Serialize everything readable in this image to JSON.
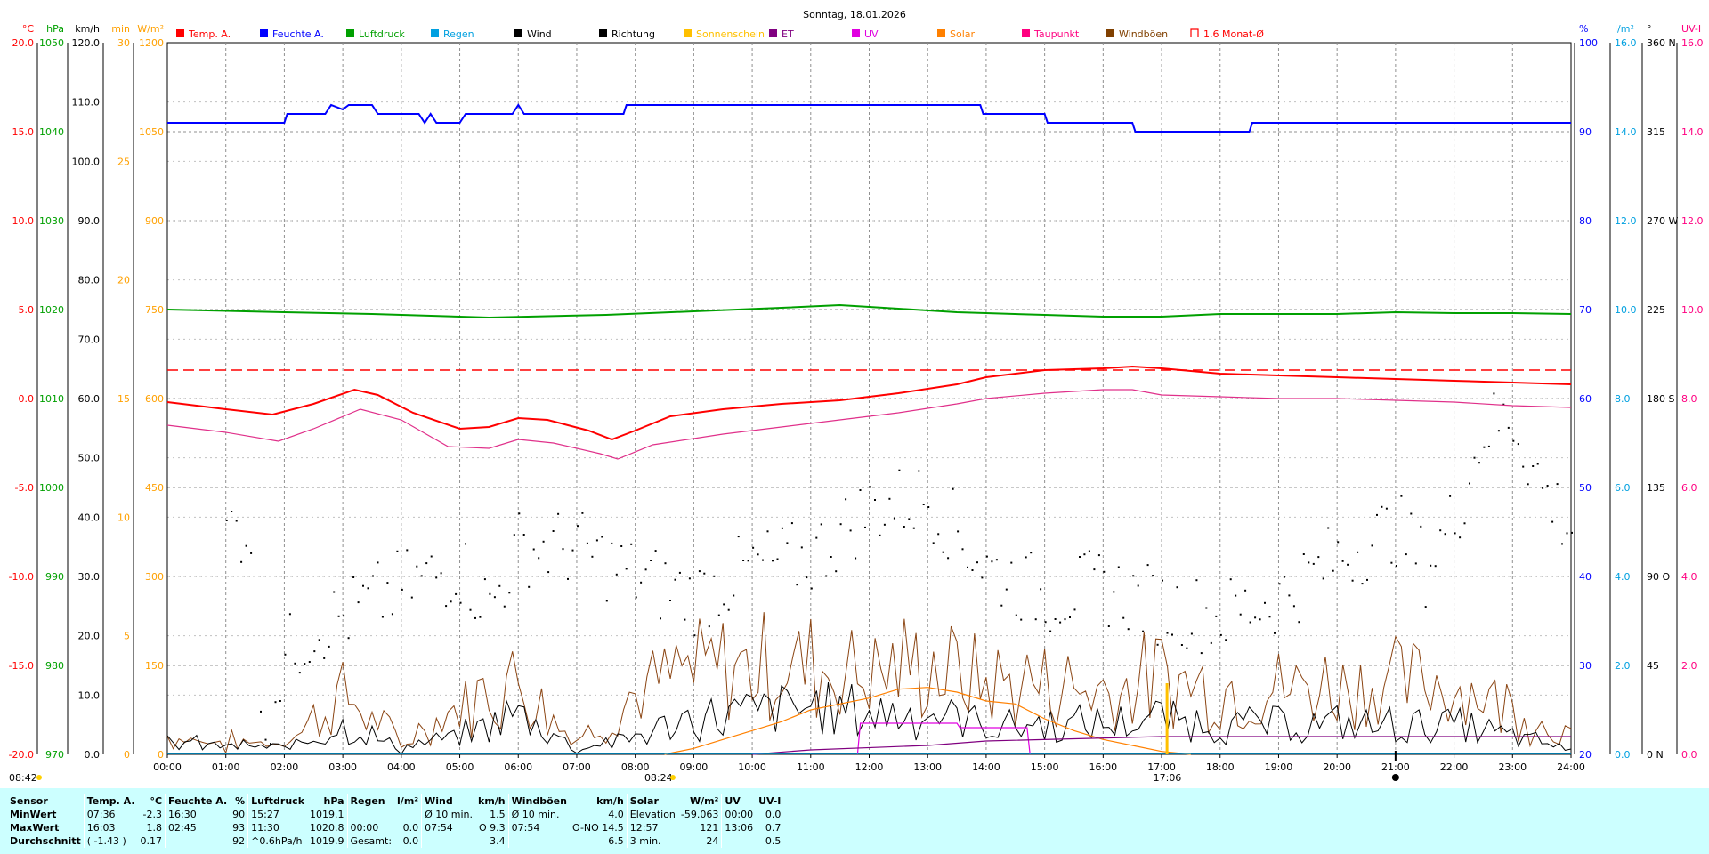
{
  "title": "Sonntag, 18.01.2026",
  "sunrise": "08:42",
  "marker_0824": "08:24",
  "marker_1706": "17:06",
  "legend": [
    {
      "label": "Temp. A.",
      "color": "#ff0000"
    },
    {
      "label": "Feuchte A.",
      "color": "#0000ff"
    },
    {
      "label": "Luftdruck",
      "color": "#00a000"
    },
    {
      "label": "Regen",
      "color": "#00a0e0"
    },
    {
      "label": "Wind",
      "color": "#000000"
    },
    {
      "label": "Richtung",
      "color": "#000000"
    },
    {
      "label": "Sonnenschein",
      "color": "#ffc000"
    },
    {
      "label": "ET",
      "color": "#800080"
    },
    {
      "label": "UV",
      "color": "#e000e0"
    },
    {
      "label": "Solar",
      "color": "#ff8000"
    },
    {
      "label": "Taupunkt",
      "color": "#ff0080"
    },
    {
      "label": "Windböen",
      "color": "#804000"
    },
    {
      "label": "1.6 Monat-Ø",
      "color": "#ff0000"
    }
  ],
  "axes": {
    "temp": {
      "unit": "°C",
      "color": "#ff0000",
      "ticks": [
        "20.0",
        "15.0",
        "10.0",
        "5.0",
        "0.0",
        "-5.0",
        "-10.0",
        "-15.0",
        "-20.0"
      ]
    },
    "pressure": {
      "unit": "hPa",
      "color": "#00a000",
      "ticks": [
        "1050",
        "1040",
        "1030",
        "1020",
        "1010",
        "1000",
        "990",
        "980",
        "970"
      ]
    },
    "wind": {
      "unit": "km/h",
      "color": "#000000",
      "ticks": [
        "120.0",
        "110.0",
        "100.0",
        "90.0",
        "80.0",
        "70.0",
        "60.0",
        "50.0",
        "40.0",
        "30.0",
        "20.0",
        "10.0",
        "0.0"
      ]
    },
    "minutes": {
      "unit": "min",
      "color": "#ffa000",
      "ticks": [
        "30",
        "25",
        "20",
        "15",
        "10",
        "5",
        "0"
      ]
    },
    "solar": {
      "unit": "W/m²",
      "color": "#ffa000",
      "ticks": [
        "1200",
        "1050",
        "900",
        "750",
        "600",
        "450",
        "300",
        "150",
        "0"
      ]
    },
    "humidity": {
      "unit": "%",
      "color": "#0000ff",
      "ticks": [
        "100",
        "90",
        "80",
        "70",
        "60",
        "50",
        "40",
        "30",
        "20"
      ]
    },
    "rain": {
      "unit": "l/m²",
      "color": "#00a0e0",
      "ticks": [
        "16.0",
        "14.0",
        "12.0",
        "10.0",
        "8.0",
        "6.0",
        "4.0",
        "2.0",
        "0.0"
      ]
    },
    "direction": {
      "unit": "°",
      "color": "#000000",
      "ticks": [
        "360 N",
        "315",
        "270 W",
        "225",
        "180 S",
        "135",
        "90 O",
        "45",
        "0 N"
      ]
    },
    "uvi": {
      "unit": "UV-I",
      "color": "#ff0080",
      "ticks": [
        "16.0",
        "14.0",
        "12.0",
        "10.0",
        "8.0",
        "6.0",
        "4.0",
        "2.0",
        "0.0"
      ]
    }
  },
  "chart_data": {
    "type": "line",
    "title": "Sonntag, 18.01.2026",
    "x_ticks": [
      "00:00",
      "01:00",
      "02:00",
      "03:00",
      "04:00",
      "05:00",
      "06:00",
      "07:00",
      "08:00",
      "09:00",
      "10:00",
      "11:00",
      "12:00",
      "13:00",
      "14:00",
      "15:00",
      "16:00",
      "17:00",
      "18:00",
      "19:00",
      "20:00",
      "21:00",
      "22:00",
      "23:00",
      "24:00"
    ],
    "xlim": [
      0,
      24
    ],
    "monthly_avg_temp": 1.6,
    "series": [
      {
        "name": "Temp. A.",
        "axis": "temp",
        "color": "#ff0000",
        "points": [
          [
            0,
            -0.2
          ],
          [
            1,
            -0.6
          ],
          [
            1.8,
            -0.9
          ],
          [
            2.5,
            -0.3
          ],
          [
            3.2,
            0.5
          ],
          [
            3.6,
            0.2
          ],
          [
            4.2,
            -0.8
          ],
          [
            5,
            -1.7
          ],
          [
            5.5,
            -1.6
          ],
          [
            6,
            -1.1
          ],
          [
            6.5,
            -1.2
          ],
          [
            7.2,
            -1.8
          ],
          [
            7.6,
            -2.3
          ],
          [
            8,
            -1.8
          ],
          [
            8.6,
            -1.0
          ],
          [
            9.5,
            -0.6
          ],
          [
            10.5,
            -0.3
          ],
          [
            11.5,
            -0.1
          ],
          [
            12.5,
            0.3
          ],
          [
            13.5,
            0.8
          ],
          [
            14,
            1.2
          ],
          [
            15,
            1.6
          ],
          [
            16,
            1.7
          ],
          [
            16.5,
            1.8
          ],
          [
            17,
            1.7
          ],
          [
            18,
            1.4
          ],
          [
            19,
            1.3
          ],
          [
            20,
            1.2
          ],
          [
            21,
            1.1
          ],
          [
            22,
            1.0
          ],
          [
            23,
            0.9
          ],
          [
            24,
            0.8
          ]
        ]
      },
      {
        "name": "Feuchte A.",
        "axis": "humidity",
        "color": "#0000ff",
        "points": [
          [
            0,
            91
          ],
          [
            2,
            91
          ],
          [
            2.05,
            92
          ],
          [
            2.7,
            92
          ],
          [
            2.8,
            93
          ],
          [
            3.0,
            92.5
          ],
          [
            3.1,
            93
          ],
          [
            3.5,
            93
          ],
          [
            3.6,
            92
          ],
          [
            4.3,
            92
          ],
          [
            4.4,
            91
          ],
          [
            4.5,
            92
          ],
          [
            4.6,
            91
          ],
          [
            5.0,
            91
          ],
          [
            5.1,
            92
          ],
          [
            5.9,
            92
          ],
          [
            6.0,
            93
          ],
          [
            6.1,
            92
          ],
          [
            7.8,
            92
          ],
          [
            7.85,
            93
          ],
          [
            13.9,
            93
          ],
          [
            13.95,
            92
          ],
          [
            15,
            92
          ],
          [
            15.05,
            91
          ],
          [
            16.5,
            91
          ],
          [
            16.55,
            90
          ],
          [
            18.5,
            90
          ],
          [
            18.55,
            91
          ],
          [
            24,
            91
          ]
        ]
      },
      {
        "name": "Luftdruck",
        "axis": "pressure",
        "color": "#00a000",
        "points": [
          [
            0,
            1020.0
          ],
          [
            2,
            1019.7
          ],
          [
            3.5,
            1019.5
          ],
          [
            5.5,
            1019.1
          ],
          [
            7.5,
            1019.4
          ],
          [
            9,
            1019.8
          ],
          [
            10.5,
            1020.2
          ],
          [
            11.5,
            1020.5
          ],
          [
            12.5,
            1020.1
          ],
          [
            13.5,
            1019.7
          ],
          [
            15,
            1019.4
          ],
          [
            16,
            1019.2
          ],
          [
            17,
            1019.2
          ],
          [
            18,
            1019.5
          ],
          [
            20,
            1019.5
          ],
          [
            21,
            1019.7
          ],
          [
            22,
            1019.6
          ],
          [
            23,
            1019.6
          ],
          [
            24,
            1019.5
          ]
        ]
      },
      {
        "name": "Taupunkt",
        "axis": "temp",
        "color": "#e0308a",
        "points": [
          [
            0,
            -1.5
          ],
          [
            1,
            -1.9
          ],
          [
            1.9,
            -2.4
          ],
          [
            2.5,
            -1.7
          ],
          [
            3.3,
            -0.6
          ],
          [
            4,
            -1.2
          ],
          [
            4.8,
            -2.7
          ],
          [
            5.5,
            -2.8
          ],
          [
            6,
            -2.3
          ],
          [
            6.6,
            -2.5
          ],
          [
            7.4,
            -3.1
          ],
          [
            7.7,
            -3.4
          ],
          [
            8.3,
            -2.6
          ],
          [
            9.5,
            -2.0
          ],
          [
            10.5,
            -1.6
          ],
          [
            11.5,
            -1.2
          ],
          [
            12.5,
            -0.8
          ],
          [
            13.5,
            -0.3
          ],
          [
            14,
            0.0
          ],
          [
            15,
            0.3
          ],
          [
            16,
            0.5
          ],
          [
            16.5,
            0.5
          ],
          [
            17,
            0.2
          ],
          [
            18,
            0.1
          ],
          [
            19,
            0.0
          ],
          [
            20,
            0.0
          ],
          [
            21,
            -0.1
          ],
          [
            22,
            -0.2
          ],
          [
            23,
            -0.4
          ],
          [
            24,
            -0.5
          ]
        ]
      },
      {
        "name": "Solar",
        "axis": "solar",
        "color": "#ff8000",
        "points": [
          [
            8.5,
            0
          ],
          [
            9,
            10
          ],
          [
            9.5,
            25
          ],
          [
            10,
            40
          ],
          [
            10.5,
            55
          ],
          [
            11,
            75
          ],
          [
            11.5,
            85
          ],
          [
            12,
            95
          ],
          [
            12.5,
            110
          ],
          [
            13,
            113
          ],
          [
            13.5,
            105
          ],
          [
            14,
            90
          ],
          [
            14.5,
            85
          ],
          [
            15,
            60
          ],
          [
            15.5,
            40
          ],
          [
            16,
            25
          ],
          [
            16.5,
            15
          ],
          [
            17,
            5
          ],
          [
            17.5,
            0
          ]
        ]
      },
      {
        "name": "UV",
        "axis": "uvi",
        "color": "#e000e0",
        "points": [
          [
            11.8,
            0
          ],
          [
            11.85,
            0.7
          ],
          [
            13.5,
            0.7
          ],
          [
            13.55,
            0.6
          ],
          [
            14.7,
            0.6
          ],
          [
            14.75,
            0
          ]
        ]
      },
      {
        "name": "ET",
        "axis": "rain",
        "color": "#800080",
        "points": [
          [
            10,
            0
          ],
          [
            11,
            0.1
          ],
          [
            13,
            0.2
          ],
          [
            14,
            0.3
          ],
          [
            17,
            0.4
          ],
          [
            20,
            0.4
          ],
          [
            24,
            0.4
          ]
        ]
      }
    ],
    "wind_avg_profile": [
      [
        0,
        2
      ],
      [
        1,
        1.5
      ],
      [
        2,
        1
      ],
      [
        3,
        5
      ],
      [
        4,
        1
      ],
      [
        5,
        3
      ],
      [
        6,
        7
      ],
      [
        7,
        1
      ],
      [
        8,
        3
      ],
      [
        9,
        6
      ],
      [
        10,
        7
      ],
      [
        11,
        8
      ],
      [
        12,
        7
      ],
      [
        13,
        7
      ],
      [
        14,
        5
      ],
      [
        15,
        5
      ],
      [
        16,
        5
      ],
      [
        17,
        6
      ],
      [
        18,
        5
      ],
      [
        19,
        5
      ],
      [
        20,
        5
      ],
      [
        21,
        5
      ],
      [
        22,
        5
      ],
      [
        23,
        3
      ],
      [
        24,
        1
      ]
    ],
    "gust_profile": [
      [
        0,
        3
      ],
      [
        1,
        2
      ],
      [
        2,
        2
      ],
      [
        3,
        10
      ],
      [
        4,
        2
      ],
      [
        5,
        8
      ],
      [
        6,
        13
      ],
      [
        7,
        2
      ],
      [
        8,
        10
      ],
      [
        9,
        14
      ],
      [
        10,
        15
      ],
      [
        11,
        15
      ],
      [
        12,
        14
      ],
      [
        13,
        15
      ],
      [
        14,
        12
      ],
      [
        15,
        12
      ],
      [
        16,
        11
      ],
      [
        17,
        13
      ],
      [
        18,
        11
      ],
      [
        19,
        11
      ],
      [
        20,
        12
      ],
      [
        21,
        12
      ],
      [
        22,
        12
      ],
      [
        23,
        8
      ],
      [
        24,
        3
      ]
    ],
    "direction_profile": [
      [
        1.5,
        0
      ],
      [
        2,
        50
      ],
      [
        2.5,
        65
      ],
      [
        3,
        70
      ],
      [
        4,
        85
      ],
      [
        5,
        95
      ],
      [
        5.5,
        75
      ],
      [
        6,
        105
      ],
      [
        7,
        105
      ],
      [
        8,
        90
      ],
      [
        9,
        80
      ],
      [
        10,
        95
      ],
      [
        11,
        100
      ],
      [
        12,
        125
      ],
      [
        13,
        130
      ],
      [
        14,
        95
      ],
      [
        15,
        80
      ],
      [
        16,
        85
      ],
      [
        17,
        75
      ],
      [
        18,
        70
      ],
      [
        19,
        80
      ],
      [
        20,
        100
      ],
      [
        21,
        115
      ],
      [
        21.5,
        95
      ],
      [
        22,
        120
      ],
      [
        22.5,
        165
      ],
      [
        23,
        170
      ],
      [
        23.5,
        135
      ],
      [
        24,
        115
      ]
    ],
    "ylim_temp": [
      -20,
      20
    ],
    "ylim_humidity": [
      20,
      100
    ],
    "ylim_pressure": [
      970,
      1050
    ],
    "ylim_wind": [
      0,
      120
    ],
    "ylim_solar": [
      0,
      1200
    ],
    "ylim_uvi": [
      0,
      16
    ],
    "ylim_rain": [
      0,
      16
    ],
    "ylim_direction": [
      0,
      360
    ]
  },
  "summary": {
    "header": [
      "Sensor",
      "Temp. A.",
      "°C",
      "Feuchte A.",
      "%",
      "Luftdruck",
      "hPa",
      "Regen",
      "l/m²",
      "Wind",
      "km/h",
      "Windböen",
      "km/h",
      "Solar",
      "W/m²",
      "UV",
      "UV-I"
    ],
    "rows": [
      [
        "MinWert",
        "07:36",
        "-2.3",
        "16:30",
        "90",
        "15:27",
        "1019.1",
        "",
        "",
        "Ø 10 min.",
        "1.5",
        "Ø 10 min.",
        "4.0",
        "Elevation",
        "-59.063",
        "00:00",
        "0.0"
      ],
      [
        "MaxWert",
        "16:03",
        "1.8",
        "02:45",
        "93",
        "11:30",
        "1020.8",
        "00:00",
        "0.0",
        "07:54",
        "O 9.3",
        "07:54",
        "O-NO 14.5",
        "12:57",
        "121",
        "13:06",
        "0.7"
      ],
      [
        "Durchschnitt",
        "( -1.43 )",
        "0.17",
        "",
        "92",
        "^0.6hPa/h",
        "1019.9",
        "Gesamt:",
        "0.0",
        "",
        "3.4",
        "",
        "6.5",
        "3 min.",
        "24",
        "",
        "0.5"
      ]
    ]
  }
}
